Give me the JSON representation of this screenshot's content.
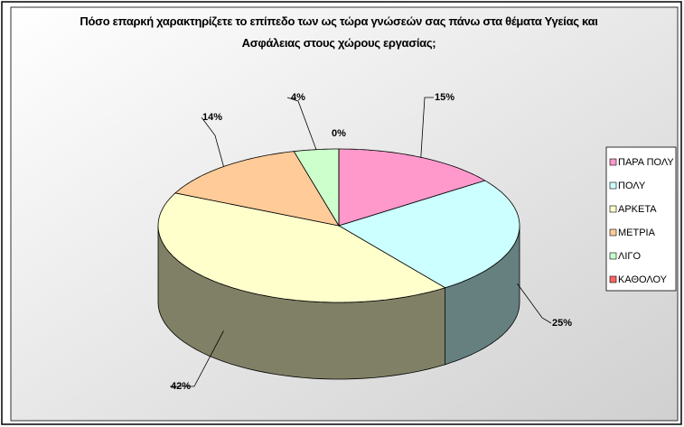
{
  "chart_data": {
    "type": "pie3d",
    "title": "Πόσο επαρκή χαρακτηρίζετε το επίπεδο των ως τώρα γνώσεών σας πάνω στα θέματα Υγείας και Ασφάλειας στους χώρους εργασίας;",
    "categories": [
      "ΠΑΡΑ ΠΟΛΥ",
      "ΠΟΛΥ",
      "ΑΡΚΕΤΑ",
      "ΜΕΤΡΙΑ",
      "ΛΙΓΟ",
      "ΚΑΘΟΛΟΥ"
    ],
    "values": [
      15,
      25,
      42,
      14,
      4,
      0
    ],
    "value_labels": [
      "15%",
      "25%",
      "42%",
      "14%",
      "4%",
      "0%"
    ],
    "colors": [
      "#ff99cc",
      "#ccffff",
      "#ffffcc",
      "#ffcc99",
      "#ccffcc",
      "#ff6666"
    ],
    "legend": "right"
  }
}
